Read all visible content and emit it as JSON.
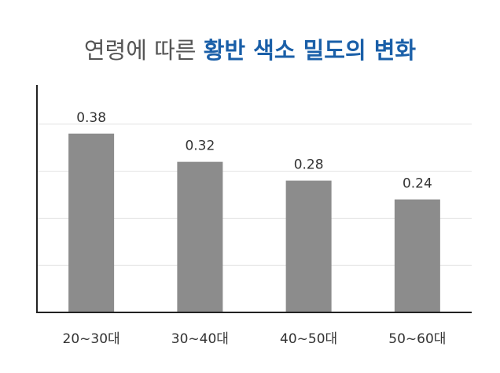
{
  "chart_data": {
    "type": "bar",
    "title": [
      "연령에 따른",
      "황반 색소 밀도의 변화"
    ],
    "categories": [
      "20~30대",
      "30~40대",
      "40~50대",
      "50~60대"
    ],
    "values": [
      0.38,
      0.32,
      0.28,
      0.24
    ],
    "color": "#8c8c8c",
    "title_color": "#1a5fa8",
    "ylim": [
      0,
      0.5
    ],
    "yticks": [
      0.1,
      0.2,
      0.3,
      0.4
    ],
    "grid": true
  }
}
